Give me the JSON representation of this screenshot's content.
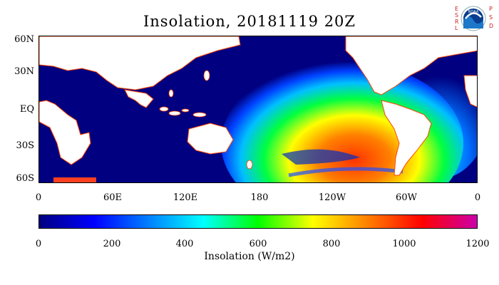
{
  "title": "Insolation, 20181119 20Z",
  "map": {
    "lat_labels": [
      "60N",
      "30N",
      "EQ",
      "30S",
      "60S"
    ],
    "lon_labels": [
      "0",
      "60E",
      "120E",
      "180",
      "120W",
      "60W",
      "0"
    ]
  },
  "colorbar": {
    "label": "Insolation (W/m2)",
    "ticks": [
      "0",
      "200",
      "400",
      "600",
      "800",
      "1000",
      "1200"
    ],
    "range": [
      0,
      1200
    ],
    "colors": [
      "#000080",
      "#0000ff",
      "#0080ff",
      "#00ffff",
      "#00ff00",
      "#ffff00",
      "#ff8000",
      "#ff0000",
      "#cc00aa"
    ]
  },
  "logos": {
    "left_text": [
      "E",
      "S",
      "R",
      "L"
    ],
    "right_text": [
      "P",
      "S",
      "D"
    ],
    "badge": "NOAA"
  }
}
